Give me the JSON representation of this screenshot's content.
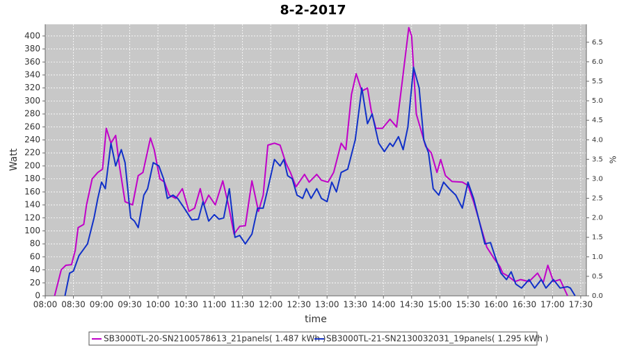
{
  "chart_data": {
    "type": "line",
    "title": "8-2-2017",
    "xlabel": "time",
    "ylabel": "Watt",
    "y2label": "%",
    "xlim": [
      "08:00",
      "17:36"
    ],
    "xticks": [
      "08:00",
      "08:30",
      "09:00",
      "09:30",
      "10:00",
      "10:30",
      "11:00",
      "11:30",
      "12:00",
      "12:30",
      "13:00",
      "13:30",
      "14:00",
      "14:30",
      "15:00",
      "15:30",
      "16:00",
      "16:30",
      "17:00",
      "17:30"
    ],
    "ylim": [
      0,
      418
    ],
    "yticks": [
      0,
      20,
      40,
      60,
      80,
      100,
      120,
      140,
      160,
      180,
      200,
      220,
      240,
      260,
      280,
      300,
      320,
      340,
      360,
      380,
      400
    ],
    "y2lim": [
      0,
      6.96
    ],
    "y2ticks": [
      {
        "value": 0,
        "label": "0.0"
      },
      0.5,
      {
        "value": 1,
        "label": "1.0"
      },
      1.5,
      {
        "value": 2,
        "label": "2.0"
      },
      2.5,
      {
        "value": 3,
        "label": "3.0"
      },
      3.5,
      {
        "value": 4,
        "label": "4.0"
      },
      4.5,
      {
        "value": 5,
        "label": "5.0"
      },
      5.5,
      {
        "value": 6,
        "label": "6.0"
      },
      6.5
    ],
    "grid": true,
    "legend": "bottom",
    "series": [
      {
        "name": "SB3000TL-20-SN2100578613_21panels( 1.487 kWh )",
        "color": "#c000c8",
        "x": [
          "08:10",
          "08:17",
          "08:22",
          "08:28",
          "08:32",
          "08:35",
          "08:41",
          "08:44",
          "08:50",
          "08:56",
          "09:01",
          "09:05",
          "09:10",
          "09:15",
          "09:19",
          "09:25",
          "09:33",
          "09:39",
          "09:44",
          "09:52",
          "09:56",
          "10:02",
          "10:07",
          "10:12",
          "10:19",
          "10:26",
          "10:33",
          "10:39",
          "10:45",
          "10:49",
          "10:54",
          "11:01",
          "11:09",
          "11:15",
          "11:21",
          "11:27",
          "11:33",
          "11:40",
          "11:47",
          "11:52",
          "11:57",
          "12:04",
          "12:10",
          "12:16",
          "12:21",
          "12:27",
          "12:36",
          "12:41",
          "12:49",
          "12:54",
          "13:01",
          "13:07",
          "13:15",
          "13:20",
          "13:26",
          "13:31",
          "13:37",
          "13:43",
          "13:47",
          "13:52",
          "13:59",
          "14:07",
          "14:14",
          "14:20",
          "14:27",
          "14:30",
          "14:35",
          "14:40",
          "14:45",
          "14:51",
          "14:57",
          "15:01",
          "15:06",
          "15:13",
          "15:24",
          "15:30",
          "15:36",
          "15:43",
          "15:50",
          "15:58",
          "16:04",
          "16:07",
          "16:13",
          "16:20",
          "16:26",
          "16:35",
          "16:44",
          "16:50",
          "16:55",
          "17:01",
          "17:08",
          "17:16"
        ],
        "values": [
          0,
          40,
          47,
          48,
          70,
          105,
          110,
          140,
          180,
          190,
          195,
          258,
          235,
          247,
          200,
          145,
          140,
          185,
          190,
          243,
          225,
          180,
          175,
          155,
          150,
          165,
          130,
          135,
          165,
          140,
          155,
          140,
          177,
          140,
          95,
          107,
          108,
          177,
          130,
          155,
          232,
          235,
          232,
          205,
          190,
          168,
          187,
          175,
          187,
          178,
          175,
          190,
          235,
          225,
          310,
          342,
          315,
          320,
          285,
          258,
          258,
          272,
          260,
          330,
          413,
          400,
          280,
          255,
          230,
          220,
          190,
          210,
          185,
          176,
          175,
          170,
          145,
          110,
          75,
          57,
          45,
          35,
          30,
          22,
          25,
          22,
          35,
          20,
          47,
          22,
          25,
          0
        ]
      },
      {
        "name": "SB3000TL-21-SN2130032031_19panels( 1.295 kWh )",
        "color": "#1030c8",
        "x": [
          "08:21",
          "08:26",
          "08:30",
          "08:36",
          "08:41",
          "08:45",
          "08:52",
          "08:56",
          "09:00",
          "09:04",
          "09:10",
          "09:15",
          "09:21",
          "09:25",
          "09:31",
          "09:35",
          "09:39",
          "09:45",
          "09:49",
          "09:55",
          "10:01",
          "10:06",
          "10:10",
          "10:16",
          "10:21",
          "10:28",
          "10:36",
          "10:43",
          "10:48",
          "10:54",
          "11:00",
          "11:05",
          "11:10",
          "11:16",
          "11:22",
          "11:27",
          "11:33",
          "11:40",
          "11:46",
          "11:52",
          "11:57",
          "12:04",
          "12:10",
          "12:14",
          "12:18",
          "12:23",
          "12:28",
          "12:34",
          "12:38",
          "12:43",
          "12:49",
          "12:54",
          "13:00",
          "13:05",
          "13:10",
          "13:15",
          "13:22",
          "13:30",
          "13:37",
          "13:43",
          "13:48",
          "13:55",
          "14:01",
          "14:07",
          "14:10",
          "14:16",
          "14:21",
          "14:26",
          "14:32",
          "14:38",
          "14:43",
          "14:48",
          "14:53",
          "14:59",
          "15:04",
          "15:10",
          "15:17",
          "15:24",
          "15:30",
          "15:36",
          "15:42",
          "15:48",
          "15:54",
          "15:59",
          "16:05",
          "16:11",
          "16:16",
          "16:21",
          "16:27",
          "16:35",
          "16:41",
          "16:48",
          "16:53",
          "17:01",
          "17:08",
          "17:16",
          "17:19",
          "17:24"
        ],
        "values": [
          0,
          35,
          38,
          62,
          72,
          80,
          120,
          150,
          175,
          165,
          235,
          200,
          225,
          205,
          120,
          115,
          105,
          155,
          165,
          205,
          200,
          180,
          150,
          155,
          150,
          135,
          117,
          118,
          145,
          115,
          125,
          118,
          120,
          165,
          90,
          93,
          80,
          95,
          135,
          135,
          165,
          210,
          200,
          210,
          185,
          180,
          155,
          150,
          165,
          150,
          165,
          150,
          145,
          175,
          160,
          190,
          195,
          240,
          320,
          265,
          280,
          235,
          222,
          235,
          230,
          245,
          225,
          260,
          352,
          320,
          240,
          220,
          165,
          155,
          175,
          165,
          155,
          135,
          175,
          150,
          115,
          80,
          82,
          60,
          35,
          25,
          37,
          18,
          12,
          25,
          12,
          25,
          12,
          25,
          12,
          14,
          12,
          0
        ]
      }
    ]
  }
}
